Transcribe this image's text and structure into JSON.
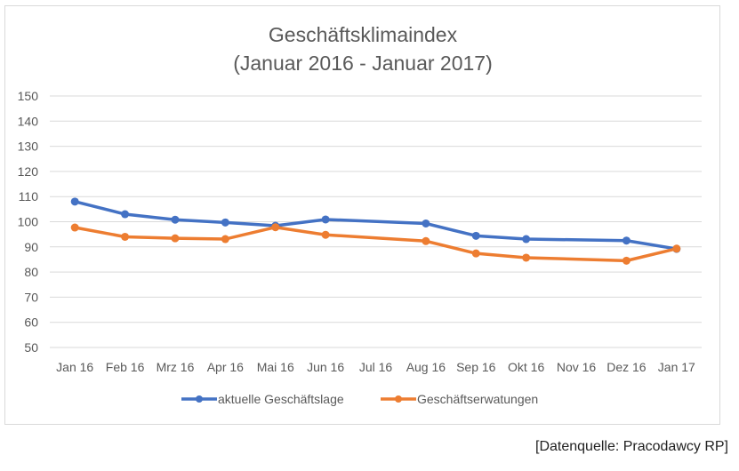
{
  "chart_data": {
    "type": "line",
    "title": "Geschäftsklimaindex",
    "subtitle": "(Januar 2016 - Januar 2017)",
    "xlabel": "",
    "ylabel": "",
    "ylim": [
      50,
      150
    ],
    "yticks": [
      50,
      60,
      70,
      80,
      90,
      100,
      110,
      120,
      130,
      140,
      150
    ],
    "grid": true,
    "legend_position": "bottom",
    "categories": [
      "Jan 16",
      "Feb 16",
      "Mrz 16",
      "Apr 16",
      "Mai 16",
      "Jun 16",
      "Jul 16",
      "Aug 16",
      "Sep 16",
      "Okt 16",
      "Nov 16",
      "Dez 16",
      "Jan 17"
    ],
    "series": [
      {
        "name": "aktuelle Geschäftslage",
        "color": "#4472C4",
        "values": [
          108,
          103,
          100.8,
          99.7,
          98.4,
          100.9,
          null,
          99.3,
          94.4,
          93.1,
          null,
          92.5,
          89.2
        ]
      },
      {
        "name": "Geschäftserwatungen",
        "color": "#ED7D31",
        "values": [
          97.7,
          94,
          93.4,
          93.1,
          97.8,
          94.8,
          null,
          92.3,
          87.4,
          85.7,
          null,
          84.5,
          89.3
        ]
      }
    ]
  },
  "source_note": "[Datenquelle: Pracodawcy RP]"
}
